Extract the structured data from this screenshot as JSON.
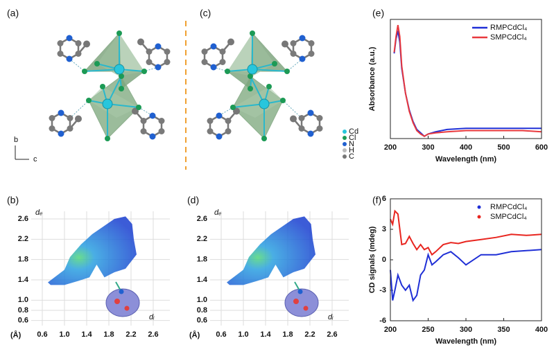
{
  "panel_labels": [
    "(a)",
    "(b)",
    "(c)",
    "(d)",
    "(e)",
    "(f)"
  ],
  "structure_legend": [
    "Cd",
    "Cl",
    "N",
    "H",
    "C"
  ],
  "axis_labels": [
    "b",
    "c"
  ],
  "chart_data": [
    {
      "type": "fingerprint",
      "ylabel": "dₑ",
      "xlabel": "dᵢ",
      "unit_label": "(Å)",
      "xlim": [
        0.4,
        2.9
      ],
      "ylim": [
        0.5,
        2.75
      ],
      "xticks": [
        0.6,
        {
          "value": 1,
          "label": "1.0"
        },
        1.4,
        1.8,
        2.2,
        2.6
      ],
      "yticks": [
        0.6,
        0.8,
        {
          "value": 1,
          "label": "1.0"
        },
        1.4,
        1.8,
        2.2,
        2.6
      ],
      "grid": true
    },
    {
      "type": "fingerprint",
      "ylabel": "dₑ",
      "xlabel": "dᵢ",
      "unit_label": "(Å)",
      "xlim": [
        0.4,
        2.9
      ],
      "ylim": [
        0.5,
        2.75
      ],
      "xticks": [
        0.6,
        {
          "value": 1,
          "label": "1.0"
        },
        1.4,
        1.8,
        2.2,
        2.6
      ],
      "yticks": [
        0.6,
        0.8,
        {
          "value": 1,
          "label": "1.0"
        },
        1.4,
        1.8,
        2.2,
        2.6
      ],
      "grid": true
    },
    {
      "type": "line",
      "xlabel": "Wavelength (nm)",
      "ylabel": "Absorbance (a.u.)",
      "xlim": [
        200,
        600
      ],
      "xticks": [
        200,
        300,
        400,
        500,
        600
      ],
      "ylim": [
        0,
        1.05
      ],
      "legend": "upper right",
      "marker": "line",
      "x": [
        210,
        215,
        220,
        225,
        230,
        240,
        250,
        260,
        270,
        280,
        290,
        300,
        320,
        350,
        400,
        450,
        500,
        550,
        600
      ],
      "series": [
        {
          "name": "RMPCdCl₄",
          "color": "#1f2fd6",
          "values": [
            0.75,
            0.88,
            0.95,
            0.85,
            0.62,
            0.4,
            0.25,
            0.15,
            0.08,
            0.05,
            0.02,
            0.04,
            0.06,
            0.08,
            0.09,
            0.09,
            0.09,
            0.09,
            0.09
          ]
        },
        {
          "name": "SMPCdCl₄",
          "color": "#e8383d",
          "values": [
            0.76,
            0.9,
            1.0,
            0.9,
            0.64,
            0.4,
            0.24,
            0.14,
            0.07,
            0.04,
            0.02,
            0.04,
            0.05,
            0.06,
            0.07,
            0.07,
            0.07,
            0.07,
            0.06
          ]
        }
      ]
    },
    {
      "type": "line",
      "xlabel": "Wavelength (nm)",
      "ylabel": "CD signals (mdeg)",
      "xlim": [
        200,
        400
      ],
      "xticks": [
        200,
        250,
        300,
        350,
        400
      ],
      "ylim": [
        -6,
        6
      ],
      "yticks": [
        -6,
        -3,
        0,
        3,
        6
      ],
      "legend": "upper right",
      "marker": "dot",
      "x": [
        200,
        203,
        206,
        210,
        215,
        220,
        225,
        230,
        235,
        240,
        245,
        250,
        255,
        260,
        270,
        280,
        290,
        300,
        320,
        340,
        360,
        380,
        400
      ],
      "series": [
        {
          "name": "RMPCdCl₄",
          "color": "#1f2fd6",
          "values": [
            -1,
            -4,
            -3,
            -1.5,
            -2.5,
            -3,
            -2.5,
            -4,
            -3.5,
            -1.5,
            -1,
            0.5,
            -0.5,
            -0.2,
            0.5,
            0.8,
            0.2,
            -0.5,
            0.5,
            0.5,
            0.8,
            0.9,
            1
          ]
        },
        {
          "name": "SMPCdCl₄",
          "color": "#e8251f",
          "values": [
            4,
            3.5,
            4.8,
            4.5,
            1.5,
            1.6,
            2.3,
            1.6,
            1,
            1.5,
            1,
            1.2,
            0.5,
            0.8,
            1.5,
            1.7,
            1.6,
            1.8,
            2,
            2.2,
            2.5,
            2.4,
            2.5
          ]
        }
      ]
    }
  ]
}
